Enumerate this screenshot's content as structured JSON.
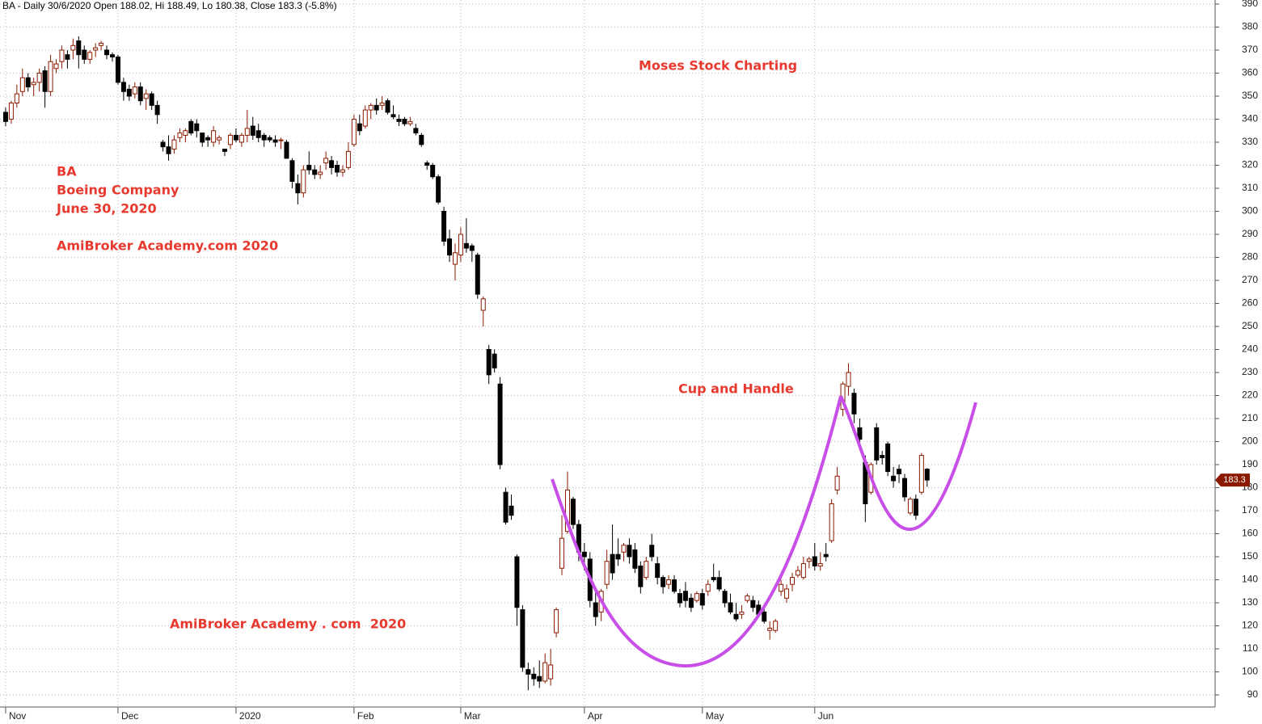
{
  "chart_data": {
    "type": "candlestick",
    "header": "BA - Daily 30/6/2020 Open 188.02, Hi 188.49, Lo 180.38, Close 183.3 (-5.8%)",
    "annotations": [
      "Moses Stock Charting",
      "BA",
      "Boeing Company",
      "June 30, 2020",
      "AmiBroker Academy.com 2020",
      "Cup and Handle",
      "AmiBroker Academy . com  2020"
    ],
    "up_color": "#8b1a00",
    "down_color": "#000000",
    "pattern_color": "#c84ee8",
    "grid": true,
    "ylim": [
      84.74,
      391.75
    ],
    "xlim": [
      -1,
      215.25
    ],
    "yticks": [
      90,
      100,
      110,
      120,
      130,
      140,
      150,
      160,
      170,
      180,
      190,
      200,
      210,
      220,
      230,
      240,
      250,
      260,
      270,
      280,
      290,
      300,
      310,
      320,
      330,
      340,
      350,
      360,
      370,
      380,
      390
    ],
    "xticks": [
      {
        "value": 0,
        "label": "Nov"
      },
      {
        "value": 20,
        "label": "Dec"
      },
      {
        "value": 41,
        "label": "2020"
      },
      {
        "value": 62,
        "label": "Feb"
      },
      {
        "value": 81,
        "label": "Mar"
      },
      {
        "value": 103,
        "label": "Apr"
      },
      {
        "value": 124,
        "label": "May"
      },
      {
        "value": 144,
        "label": "Jun"
      }
    ],
    "candles": [
      [
        343,
        345,
        337,
        339
      ],
      [
        340,
        348,
        338,
        347
      ],
      [
        347,
        355,
        345,
        351
      ],
      [
        352,
        362,
        350,
        358
      ],
      [
        358,
        360,
        352,
        354
      ],
      [
        355,
        358,
        350,
        356
      ],
      [
        356,
        362,
        352,
        360
      ],
      [
        361,
        363,
        345,
        352
      ],
      [
        352,
        368,
        350,
        365
      ],
      [
        362,
        366,
        360,
        364
      ],
      [
        365,
        372,
        362,
        370
      ],
      [
        368,
        370,
        362,
        366
      ],
      [
        370,
        375,
        366,
        372
      ],
      [
        374,
        376,
        362,
        368
      ],
      [
        370,
        372,
        364,
        366
      ],
      [
        366,
        370,
        364,
        369
      ],
      [
        370,
        373,
        367,
        371
      ],
      [
        372,
        374,
        370,
        373
      ],
      [
        370,
        372,
        366,
        368
      ],
      [
        368,
        369,
        365,
        367
      ],
      [
        367,
        368,
        355,
        356
      ],
      [
        356,
        358,
        348,
        352
      ],
      [
        353,
        355,
        348,
        350
      ],
      [
        351,
        356,
        349,
        354
      ],
      [
        354,
        356,
        346,
        348
      ],
      [
        349,
        353,
        344,
        351
      ],
      [
        351,
        352,
        344,
        346
      ],
      [
        346,
        348,
        338,
        342
      ],
      [
        330,
        331,
        326,
        328
      ],
      [
        328,
        333,
        322,
        325
      ],
      [
        327,
        333,
        325,
        331
      ],
      [
        332,
        336,
        330,
        334
      ],
      [
        333,
        336,
        330,
        335
      ],
      [
        339,
        340,
        333,
        334
      ],
      [
        338,
        340,
        332,
        335
      ],
      [
        334,
        334,
        328,
        330
      ],
      [
        332,
        333,
        328,
        331
      ],
      [
        330,
        337,
        328,
        335
      ],
      [
        331,
        333,
        329,
        332
      ],
      [
        327,
        327,
        324,
        326
      ],
      [
        329,
        334,
        327,
        333
      ],
      [
        333,
        336,
        330,
        331
      ],
      [
        330,
        334,
        328,
        333
      ],
      [
        333,
        344,
        330,
        336
      ],
      [
        337,
        341,
        331,
        333
      ],
      [
        335,
        338,
        330,
        332
      ],
      [
        333,
        334,
        328,
        331
      ],
      [
        332,
        333,
        330,
        331
      ],
      [
        331,
        333,
        328,
        330
      ],
      [
        331,
        332,
        327,
        331
      ],
      [
        330,
        331,
        324,
        323
      ],
      [
        322,
        323,
        310,
        313
      ],
      [
        312,
        316,
        303,
        308
      ],
      [
        308,
        320,
        306,
        318
      ],
      [
        320,
        326,
        316,
        318
      ],
      [
        318,
        320,
        314,
        316
      ],
      [
        316,
        320,
        314,
        317
      ],
      [
        321,
        326,
        318,
        323
      ],
      [
        322,
        324,
        316,
        319
      ],
      [
        320,
        322,
        315,
        317
      ],
      [
        317,
        320,
        315,
        318
      ],
      [
        319,
        330,
        318,
        326
      ],
      [
        329,
        342,
        328,
        340
      ],
      [
        338,
        342,
        333,
        335
      ],
      [
        337,
        346,
        336,
        344
      ],
      [
        344,
        347,
        340,
        346
      ],
      [
        346,
        349,
        342,
        344
      ],
      [
        346,
        350,
        344,
        347
      ],
      [
        348,
        349,
        342,
        343
      ],
      [
        342,
        346,
        340,
        341
      ],
      [
        340,
        342,
        337,
        339
      ],
      [
        340,
        341,
        337,
        338
      ],
      [
        338,
        341,
        337,
        339
      ],
      [
        336,
        338,
        333,
        334
      ],
      [
        333,
        334,
        328,
        329
      ],
      [
        321,
        322,
        318,
        320
      ],
      [
        320,
        321,
        314,
        315
      ],
      [
        315,
        316,
        303,
        304
      ],
      [
        300,
        302,
        285,
        287
      ],
      [
        288,
        292,
        278,
        281
      ],
      [
        277,
        286,
        270,
        282
      ],
      [
        281,
        293,
        278,
        290
      ],
      [
        286,
        297,
        282,
        284
      ],
      [
        285,
        286,
        278,
        283
      ],
      [
        281,
        282,
        262,
        264
      ],
      [
        257,
        263,
        250,
        262
      ],
      [
        240,
        242,
        225,
        229
      ],
      [
        238,
        240,
        230,
        232
      ],
      [
        225,
        228,
        188,
        190
      ],
      [
        178,
        180,
        164,
        165
      ],
      [
        172,
        177,
        166,
        168
      ],
      [
        150,
        151,
        120,
        128
      ],
      [
        127,
        129,
        100,
        102
      ],
      [
        101,
        104,
        92,
        99
      ],
      [
        99,
        102,
        94,
        97
      ],
      [
        98,
        105,
        93,
        96
      ],
      [
        96,
        108,
        95,
        104
      ],
      [
        97,
        110,
        94,
        103
      ],
      [
        117,
        128,
        115,
        127
      ],
      [
        145,
        168,
        142,
        158
      ],
      [
        161,
        187,
        160,
        179
      ],
      [
        175,
        176,
        162,
        164
      ],
      [
        164,
        166,
        148,
        152
      ],
      [
        152,
        156,
        144,
        150
      ],
      [
        149,
        152,
        128,
        131
      ],
      [
        130,
        135,
        120,
        124
      ],
      [
        126,
        136,
        122,
        135
      ],
      [
        138,
        153,
        136,
        148
      ],
      [
        151,
        164,
        140,
        143
      ],
      [
        151,
        158,
        146,
        149
      ],
      [
        152,
        156,
        148,
        155
      ],
      [
        155,
        158,
        147,
        150
      ],
      [
        153,
        156,
        143,
        145
      ],
      [
        146,
        148,
        134,
        137
      ],
      [
        141,
        150,
        140,
        148
      ],
      [
        155,
        160,
        148,
        150
      ],
      [
        147,
        150,
        138,
        141
      ],
      [
        141,
        142,
        134,
        137
      ],
      [
        138,
        142,
        136,
        140
      ],
      [
        140,
        142,
        134,
        135
      ],
      [
        134,
        136,
        128,
        130
      ],
      [
        135,
        139,
        128,
        131
      ],
      [
        132,
        134,
        126,
        128
      ],
      [
        131,
        135,
        130,
        134
      ],
      [
        134,
        136,
        127,
        129
      ],
      [
        135,
        140,
        133,
        138
      ],
      [
        141,
        147,
        139,
        140
      ],
      [
        141,
        144,
        135,
        136
      ],
      [
        135,
        136,
        128,
        130
      ],
      [
        130,
        134,
        125,
        126
      ],
      [
        125,
        130,
        122,
        123
      ],
      [
        125,
        129,
        123,
        126
      ],
      [
        131,
        134,
        130,
        133
      ],
      [
        131,
        133,
        126,
        128
      ],
      [
        129,
        131,
        124,
        125
      ],
      [
        126,
        128,
        121,
        122
      ],
      [
        118,
        122,
        114,
        119
      ],
      [
        118,
        123,
        117,
        122
      ],
      [
        135,
        140,
        133,
        138
      ],
      [
        132,
        138,
        130,
        136
      ],
      [
        138,
        143,
        135,
        141
      ],
      [
        142,
        146,
        141,
        144
      ],
      [
        141,
        150,
        140,
        147
      ],
      [
        148,
        150,
        145,
        149
      ],
      [
        150,
        156,
        144,
        146
      ],
      [
        146,
        152,
        144,
        147
      ],
      [
        151,
        156,
        148,
        150
      ],
      [
        157,
        175,
        156,
        173
      ],
      [
        179,
        189,
        177,
        185
      ],
      [
        214,
        226,
        211,
        225
      ],
      [
        224,
        234,
        220,
        230
      ],
      [
        221,
        223,
        208,
        212
      ],
      [
        206,
        210,
        198,
        201
      ],
      [
        191,
        194,
        165,
        173
      ],
      [
        178,
        191,
        177,
        190
      ],
      [
        206,
        208,
        190,
        192
      ],
      [
        194,
        196,
        190,
        193
      ],
      [
        199,
        200,
        185,
        187
      ],
      [
        185,
        189,
        180,
        183
      ],
      [
        188,
        190,
        182,
        186
      ],
      [
        184,
        186,
        174,
        176
      ],
      [
        169,
        176,
        168,
        175
      ],
      [
        175,
        177,
        166,
        168
      ],
      [
        178,
        195,
        177,
        194
      ],
      [
        188.02,
        188.49,
        180.38,
        183.3
      ]
    ]
  }
}
